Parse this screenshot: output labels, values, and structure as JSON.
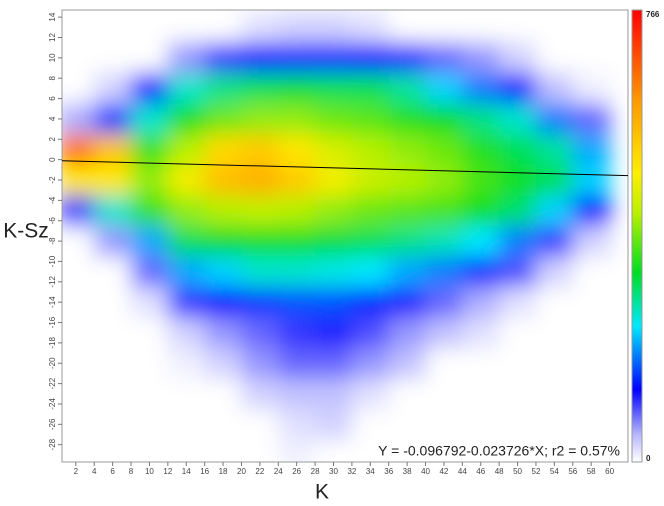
{
  "chart_data": {
    "type": "density",
    "x_label": "K",
    "y_label": "K-Sz",
    "annotation": "Y = -0.096792-0.023726*X;  r2 = 0.57%",
    "xlim": [
      0.5,
      62
    ],
    "ylim": [
      -29.7,
      14.7
    ],
    "xticks": [
      2,
      4,
      6,
      8,
      10,
      12,
      14,
      16,
      18,
      20,
      22,
      24,
      26,
      28,
      30,
      32,
      34,
      36,
      38,
      40,
      42,
      44,
      46,
      48,
      50,
      52,
      54,
      56,
      58,
      60
    ],
    "yticks": [
      -28,
      -26,
      -24,
      -22,
      -20,
      -18,
      -16,
      -14,
      -12,
      -10,
      -8,
      -6,
      -4,
      -2,
      0,
      2,
      4,
      6,
      8,
      10,
      12,
      14
    ],
    "x": [
      2,
      6,
      10,
      14,
      18,
      22,
      26,
      30,
      34,
      38,
      42,
      46,
      50,
      54,
      58
    ],
    "y": [
      13,
      10,
      7,
      4,
      1,
      -2,
      -5,
      -8,
      -11,
      -14,
      -17,
      -20,
      -23,
      -26,
      -29
    ],
    "z": [
      [
        0,
        0,
        0,
        0,
        0,
        20,
        30,
        30,
        20,
        0,
        0,
        0,
        0,
        0,
        0
      ],
      [
        0,
        0,
        0,
        60,
        100,
        130,
        140,
        140,
        130,
        110,
        80,
        60,
        30,
        0,
        0
      ],
      [
        0,
        30,
        120,
        250,
        280,
        300,
        310,
        300,
        300,
        270,
        220,
        180,
        120,
        40,
        10
      ],
      [
        50,
        150,
        250,
        330,
        380,
        400,
        400,
        380,
        370,
        340,
        320,
        280,
        250,
        180,
        80
      ],
      [
        650,
        550,
        350,
        420,
        520,
        540,
        500,
        450,
        420,
        400,
        380,
        340,
        300,
        270,
        200
      ],
      [
        500,
        500,
        400,
        480,
        560,
        580,
        540,
        480,
        440,
        420,
        400,
        360,
        330,
        300,
        220
      ],
      [
        100,
        250,
        350,
        400,
        420,
        430,
        420,
        400,
        380,
        370,
        360,
        330,
        290,
        220,
        120
      ],
      [
        0,
        60,
        200,
        300,
        320,
        330,
        330,
        310,
        300,
        280,
        260,
        230,
        180,
        100,
        30
      ],
      [
        0,
        0,
        80,
        200,
        220,
        250,
        250,
        240,
        230,
        200,
        180,
        140,
        90,
        30,
        0
      ],
      [
        0,
        0,
        20,
        100,
        120,
        150,
        160,
        160,
        140,
        110,
        80,
        50,
        20,
        0,
        0
      ],
      [
        0,
        0,
        0,
        30,
        60,
        80,
        100,
        110,
        90,
        60,
        40,
        20,
        0,
        0,
        0
      ],
      [
        0,
        0,
        0,
        10,
        30,
        60,
        80,
        80,
        60,
        40,
        0,
        0,
        0,
        0,
        0
      ],
      [
        0,
        0,
        0,
        0,
        0,
        30,
        40,
        40,
        20,
        0,
        0,
        0,
        0,
        0,
        0
      ],
      [
        0,
        0,
        0,
        0,
        0,
        0,
        20,
        30,
        0,
        0,
        0,
        0,
        0,
        0,
        0
      ],
      [
        0,
        0,
        0,
        0,
        0,
        0,
        10,
        0,
        0,
        0,
        0,
        0,
        0,
        0,
        0
      ]
    ],
    "zlim": [
      0,
      766
    ],
    "colorscale": [
      [
        0,
        "#ffffff"
      ],
      [
        0.06,
        "#b8b8ff"
      ],
      [
        0.16,
        "#0000ff"
      ],
      [
        0.3,
        "#00e8ff"
      ],
      [
        0.42,
        "#00dd22"
      ],
      [
        0.55,
        "#b8f000"
      ],
      [
        0.64,
        "#ffee00"
      ],
      [
        0.8,
        "#ff9900"
      ],
      [
        1,
        "#ff0000"
      ]
    ],
    "regression": {
      "intercept": -0.096792,
      "slope": -0.023726,
      "color": "#000000"
    }
  }
}
